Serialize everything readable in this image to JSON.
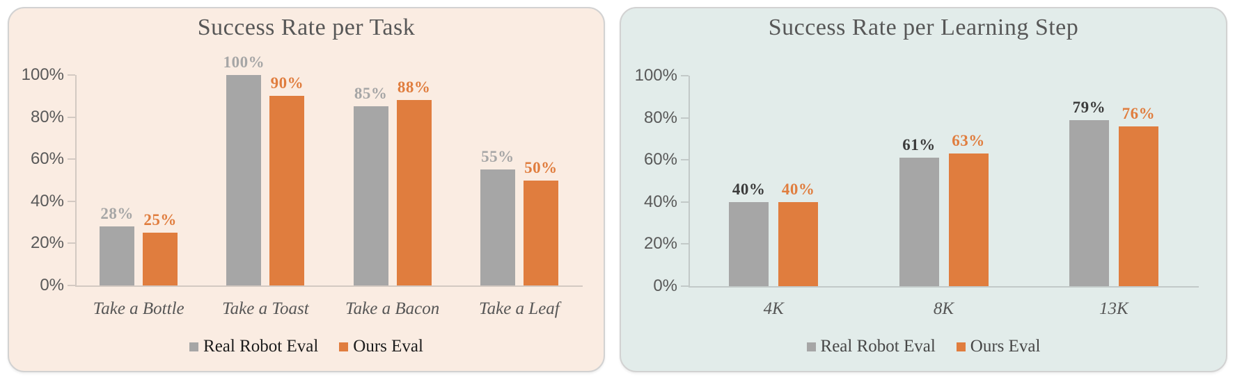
{
  "page": {
    "background": "#ffffff"
  },
  "chart_data": [
    {
      "type": "bar",
      "title": "Success Rate per Task",
      "card_bg": "#FAECE2",
      "categories": [
        "Take a Bottle",
        "Take a Toast",
        "Take a Bacon",
        "Take a Leaf"
      ],
      "series": [
        {
          "name": "Real Robot Eval",
          "color": "#A6A6A6",
          "label_color": "#A6A6A6",
          "values": [
            28,
            100,
            85,
            55
          ]
        },
        {
          "name": "Ours Eval",
          "color": "#E07D3E",
          "label_color": "#E07D3E",
          "values": [
            25,
            90,
            88,
            50
          ]
        }
      ],
      "value_suffix": "%",
      "y_ticks": [
        "100%",
        "80%",
        "60%",
        "40%",
        "20%",
        "0%"
      ],
      "ylim": [
        0,
        100
      ],
      "xlabel": "",
      "ylabel": "",
      "grid": false,
      "legend_position": "bottom",
      "legend_text_color": "#1c1c1c"
    },
    {
      "type": "bar",
      "title": "Success Rate per Learning Step",
      "card_bg": "#E2ECEA",
      "categories": [
        "4K",
        "8K",
        "13K"
      ],
      "series": [
        {
          "name": "Real Robot Eval",
          "color": "#A6A6A6",
          "label_color": "#3B3B3B",
          "values": [
            40,
            61,
            79
          ]
        },
        {
          "name": "Ours Eval",
          "color": "#E07D3E",
          "label_color": "#E07D3E",
          "values": [
            40,
            63,
            76
          ]
        }
      ],
      "value_suffix": "%",
      "y_ticks": [
        "100%",
        "80%",
        "60%",
        "40%",
        "20%",
        "0%"
      ],
      "ylim": [
        0,
        100
      ],
      "xlabel": "",
      "ylabel": "",
      "grid": false,
      "legend_position": "bottom",
      "legend_text_color": "#474747"
    }
  ]
}
